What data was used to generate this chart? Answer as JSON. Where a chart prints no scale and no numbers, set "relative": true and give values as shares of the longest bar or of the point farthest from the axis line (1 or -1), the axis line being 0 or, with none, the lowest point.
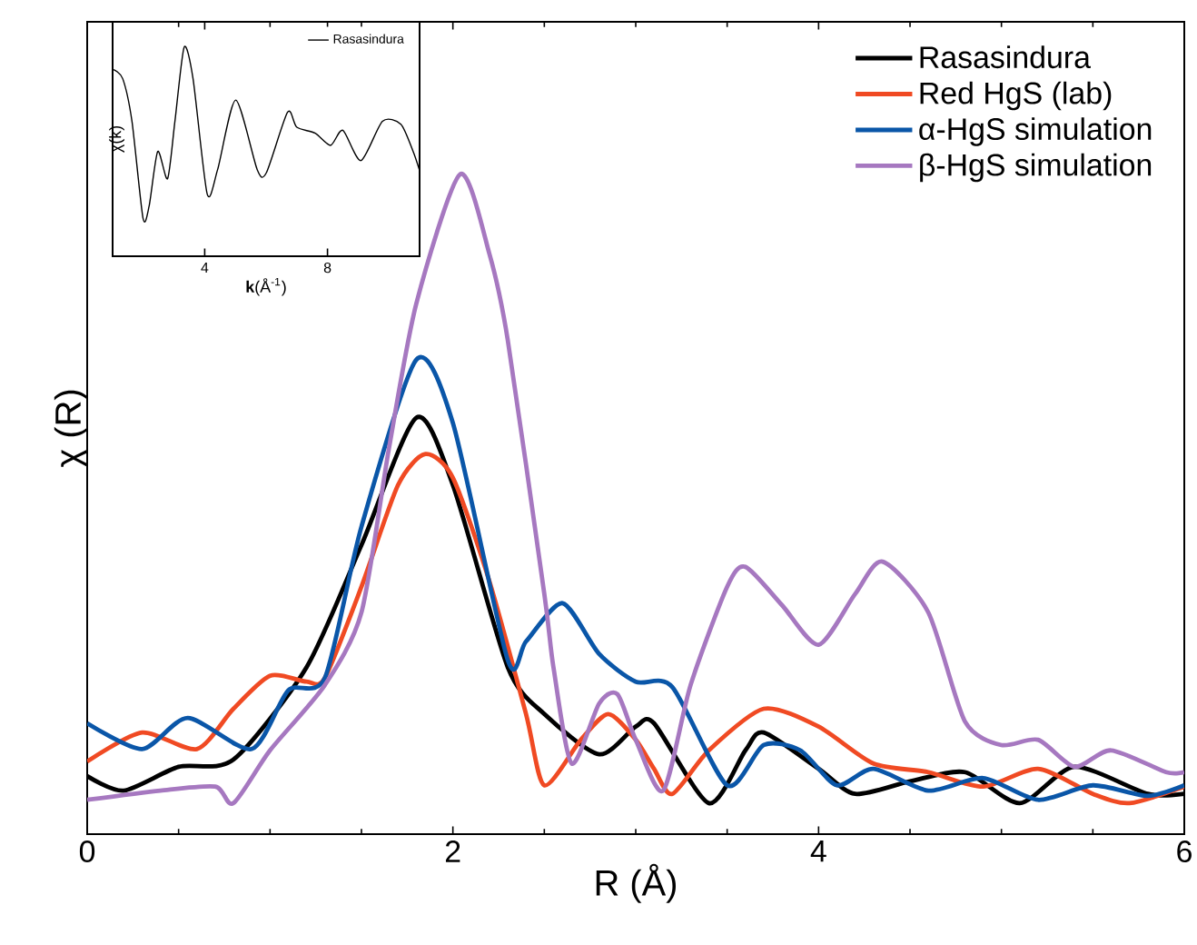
{
  "chart_data": [
    {
      "type": "line",
      "xlabel": "R (Å)",
      "ylabel": "χ (R)",
      "relative": true,
      "xlim": [
        0,
        6
      ],
      "xticks": [
        0,
        2,
        4,
        6
      ],
      "tick_labels": "x",
      "legend": "top right",
      "series": [
        {
          "name": "Rasasindura",
          "color": "#000000",
          "x": [
            0,
            0.2,
            0.5,
            0.8,
            1.2,
            1.5,
            1.8,
            2.0,
            2.3,
            2.5,
            2.8,
            3.0,
            3.1,
            3.4,
            3.6,
            3.7,
            4.0,
            4.2,
            4.5,
            4.8,
            5.1,
            5.4,
            5.8,
            6.0
          ],
          "values": [
            0.088,
            0.066,
            0.102,
            0.113,
            0.253,
            0.438,
            0.631,
            0.529,
            0.253,
            0.182,
            0.121,
            0.163,
            0.168,
            0.047,
            0.127,
            0.154,
            0.099,
            0.061,
            0.08,
            0.094,
            0.047,
            0.102,
            0.061,
            0.061
          ]
        },
        {
          "name": "Red HgS (lab)",
          "color": "#f04a23",
          "x": [
            0,
            0.3,
            0.6,
            0.8,
            1.0,
            1.2,
            1.3,
            1.5,
            1.7,
            1.85,
            2.0,
            2.2,
            2.4,
            2.5,
            2.7,
            2.85,
            3.0,
            3.1,
            3.2,
            3.4,
            3.7,
            4.0,
            4.3,
            4.6,
            4.9,
            5.2,
            5.5,
            5.7,
            6.0
          ],
          "values": [
            0.11,
            0.154,
            0.129,
            0.19,
            0.24,
            0.231,
            0.237,
            0.375,
            0.529,
            0.576,
            0.54,
            0.383,
            0.182,
            0.074,
            0.143,
            0.182,
            0.143,
            0.099,
            0.061,
            0.127,
            0.19,
            0.163,
            0.107,
            0.094,
            0.072,
            0.099,
            0.061,
            0.047,
            0.072
          ]
        },
        {
          "name": "α-HgS simulation",
          "color": "#0a56a8",
          "x": [
            0,
            0.3,
            0.55,
            0.9,
            1.1,
            1.3,
            1.5,
            1.8,
            2.0,
            2.3,
            2.4,
            2.6,
            2.8,
            3.0,
            3.2,
            3.5,
            3.7,
            3.9,
            4.1,
            4.3,
            4.6,
            4.9,
            5.2,
            5.5,
            5.8,
            6.0
          ],
          "values": [
            0.168,
            0.129,
            0.176,
            0.129,
            0.218,
            0.237,
            0.466,
            0.719,
            0.623,
            0.264,
            0.292,
            0.35,
            0.273,
            0.231,
            0.223,
            0.074,
            0.135,
            0.127,
            0.074,
            0.099,
            0.066,
            0.085,
            0.052,
            0.074,
            0.058,
            0.074
          ]
        },
        {
          "name": "β-HgS simulation",
          "color": "#a678c0",
          "x": [
            0,
            0.4,
            0.7,
            0.8,
            1.0,
            1.3,
            1.5,
            1.65,
            1.8,
            2.04,
            2.2,
            2.3,
            2.5,
            2.55,
            2.65,
            2.8,
            2.9,
            3.0,
            3.15,
            3.3,
            3.5,
            3.6,
            3.8,
            4.0,
            4.2,
            4.35,
            4.6,
            4.8,
            5.0,
            5.2,
            5.4,
            5.6,
            5.9,
            6.0
          ],
          "values": [
            0.052,
            0.066,
            0.072,
            0.047,
            0.127,
            0.226,
            0.336,
            0.584,
            0.804,
            1.0,
            0.879,
            0.749,
            0.364,
            0.253,
            0.107,
            0.198,
            0.212,
            0.143,
            0.066,
            0.226,
            0.375,
            0.405,
            0.347,
            0.287,
            0.364,
            0.413,
            0.336,
            0.171,
            0.135,
            0.143,
            0.102,
            0.127,
            0.094,
            0.094
          ]
        }
      ]
    },
    {
      "type": "line",
      "xlabel": "**k**(Å$^{-1}$)",
      "ylabel": "χ(k)",
      "relative": true,
      "xlim": [
        1,
        11
      ],
      "xticks": [
        4,
        8
      ],
      "tick_labels": "x",
      "legend": "top right",
      "series": [
        {
          "name": "Rasasindura",
          "color": "#000000",
          "x": [
            1.03,
            1.33,
            1.63,
            1.99,
            2.19,
            2.47,
            2.79,
            3.03,
            3.33,
            3.62,
            4.08,
            4.42,
            5.01,
            5.71,
            6.01,
            6.7,
            7.0,
            7.6,
            8.1,
            8.5,
            9.09,
            9.79,
            10.39,
            10.79,
            10.99
          ],
          "values": [
            0.869,
            0.816,
            0.567,
            0,
            0.071,
            0.39,
            0.231,
            0.567,
            1.0,
            0.816,
            0.142,
            0.284,
            0.691,
            0.284,
            0.266,
            0.62,
            0.532,
            0.497,
            0.426,
            0.514,
            0.337,
            0.567,
            0.55,
            0.39,
            0.284
          ]
        }
      ]
    }
  ]
}
